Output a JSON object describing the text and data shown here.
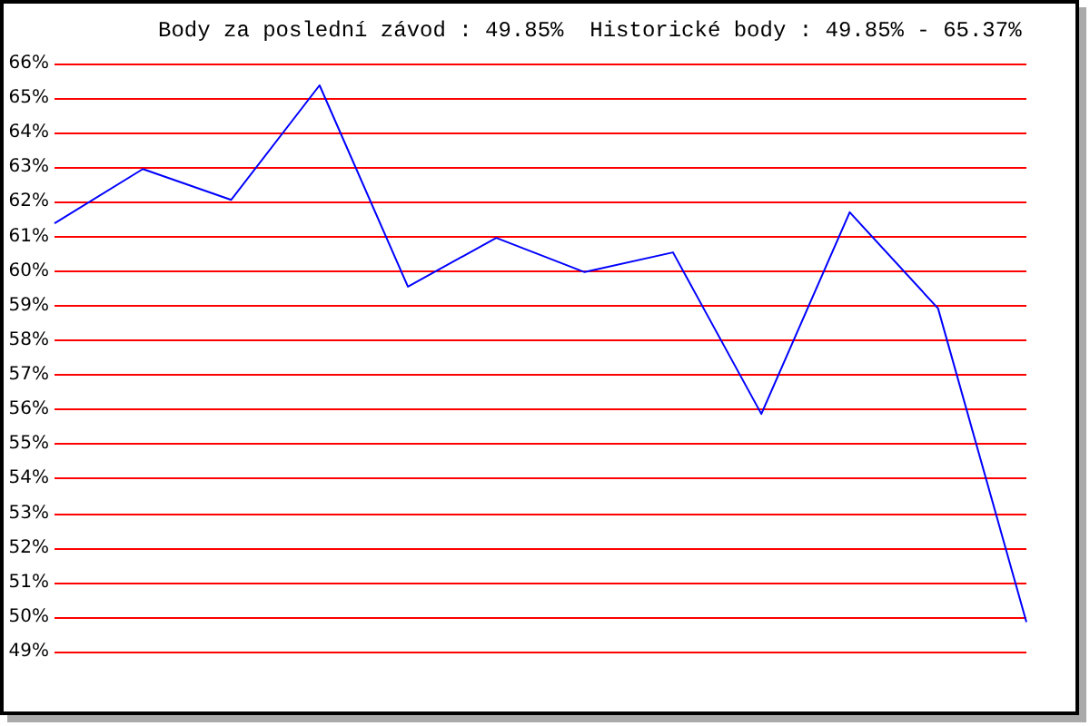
{
  "chart_data": {
    "type": "line",
    "title": "Body za poslední závod : 49.85%  Historické body : 49.85% - 65.37%",
    "categories": [
      null,
      null,
      null,
      null,
      null,
      null,
      null,
      null,
      null,
      null,
      null,
      null
    ],
    "series": [
      {
        "color": "#0000ff",
        "values": [
          61.38,
          62.95,
          62.06,
          65.37,
          59.55,
          60.96,
          59.97,
          60.54,
          55.87,
          61.7,
          58.92,
          49.85
        ]
      }
    ],
    "ylim": [
      49,
      66
    ],
    "yticks": [
      {
        "value": 49,
        "label": "49%"
      },
      {
        "value": 50,
        "label": "50%"
      },
      {
        "value": 51,
        "label": "51%"
      },
      {
        "value": 52,
        "label": "52%"
      },
      {
        "value": 53,
        "label": "53%"
      },
      {
        "value": 54,
        "label": "54%"
      },
      {
        "value": 55,
        "label": "55%"
      },
      {
        "value": 56,
        "label": "56%"
      },
      {
        "value": 57,
        "label": "57%"
      },
      {
        "value": 58,
        "label": "58%"
      },
      {
        "value": 59,
        "label": "59%"
      },
      {
        "value": 60,
        "label": "60%"
      },
      {
        "value": 61,
        "label": "61%"
      },
      {
        "value": 62,
        "label": "62%"
      },
      {
        "value": 63,
        "label": "63%"
      },
      {
        "value": 64,
        "label": "64%"
      },
      {
        "value": 65,
        "label": "65%"
      },
      {
        "value": 66,
        "label": "66%"
      }
    ],
    "grid": "y",
    "marker": "none"
  }
}
